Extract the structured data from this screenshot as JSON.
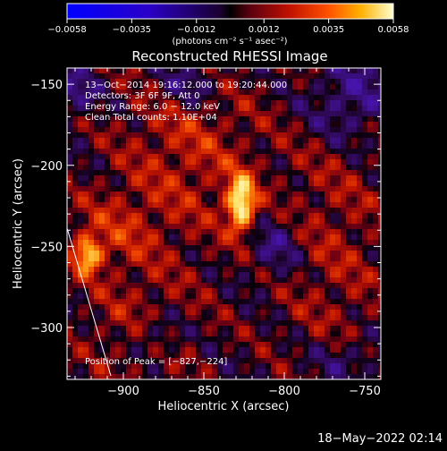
{
  "chart_data": {
    "type": "heatmap",
    "title": "Reconstructed RHESSI Image",
    "xlabel": "Heliocentric X (arcsec)",
    "ylabel": "Heliocentric Y (arcsec)",
    "xlim": [
      -935,
      -740
    ],
    "ylim": [
      -332,
      -140
    ],
    "xticks": [
      -900,
      -850,
      -800,
      -750
    ],
    "yticks": [
      -150,
      -200,
      -250,
      -300
    ],
    "xtick_labels": [
      "−900",
      "−850",
      "−800",
      "−750"
    ],
    "ytick_labels": [
      "−150",
      "−200",
      "−250",
      "−300"
    ],
    "grid": false,
    "colorbar": {
      "min": -0.0058,
      "max": 0.0058,
      "ticks": [
        -0.0058,
        -0.0035,
        -0.0012,
        0.0012,
        0.0035,
        0.0058
      ],
      "tick_labels": [
        "−0.0058",
        "−0.0035",
        "−0.0012",
        "0.0012",
        "0.0035",
        "0.0058"
      ],
      "units_label": "(photons cm⁻² s⁻¹ asec⁻²)"
    },
    "annotations": [
      "13−Oct−2014 19:16:12.000 to 19:20:44.000",
      "Detectors: 3F 6F 9F, Att 0",
      "Energy Range: 6.0 − 12.0 keV",
      "Clean     Total counts: 1.10E+04"
    ],
    "peak_label": "Position of Peak = [−827,−224]",
    "peak": [
      -827,
      -224
    ]
  },
  "footer": {
    "timestamp": "18−May−2022 02:14"
  },
  "colors": {
    "background": "#000000",
    "text": "#ffffff",
    "limb_line": "#ffffff"
  }
}
